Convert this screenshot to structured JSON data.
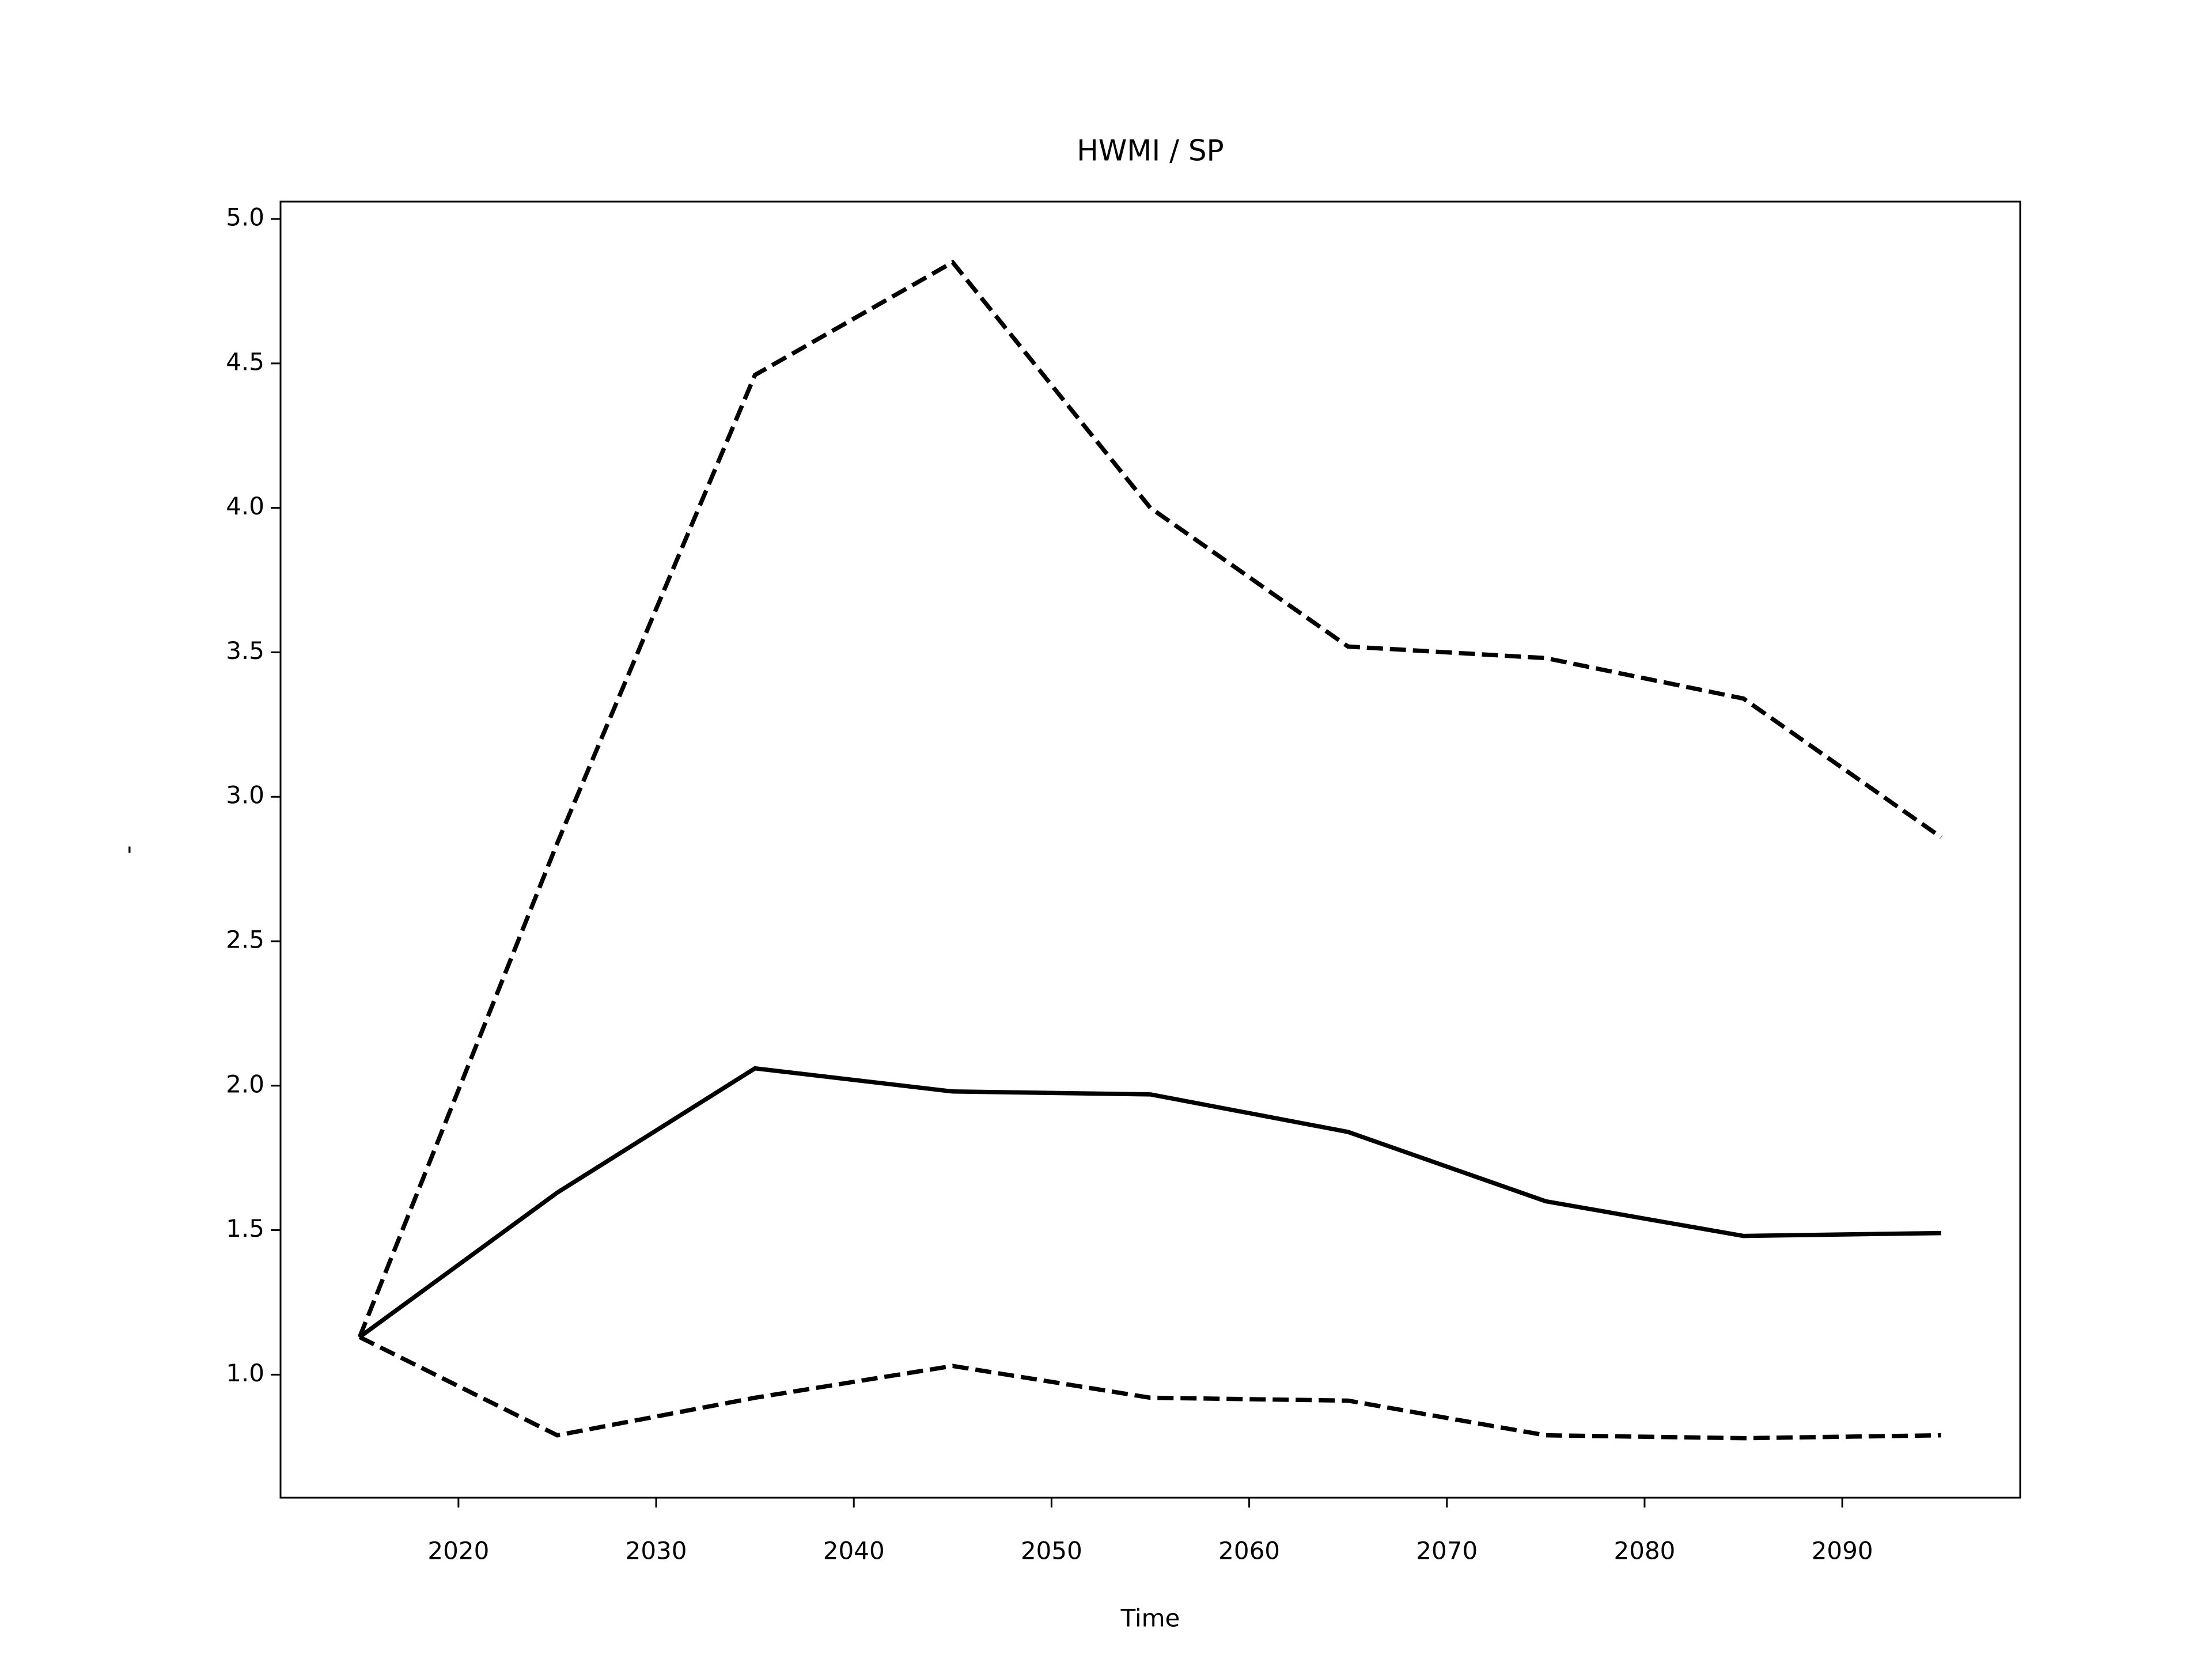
{
  "chart_data": {
    "type": "line",
    "title": "HWMI / SP",
    "xlabel": "Time",
    "ylabel": "-",
    "x": [
      2015,
      2025,
      2035,
      2045,
      2055,
      2065,
      2075,
      2085,
      2095
    ],
    "series": [
      {
        "color": "#000000",
        "linestyle": "solid",
        "values": [
          1.13,
          1.63,
          2.06,
          1.98,
          1.97,
          1.84,
          1.6,
          1.48,
          1.49
        ]
      },
      {
        "color": "#000000",
        "linestyle": "dashed",
        "values": [
          1.13,
          2.84,
          4.46,
          4.85,
          4.0,
          3.52,
          3.48,
          3.34,
          2.86
        ]
      },
      {
        "color": "#000000",
        "linestyle": "dashed",
        "values": [
          1.13,
          0.79,
          0.92,
          1.03,
          0.92,
          0.91,
          0.79,
          0.78,
          0.79
        ]
      }
    ],
    "xlim": [
      2011,
      2099
    ],
    "xticks": [
      2020,
      2030,
      2040,
      2050,
      2060,
      2070,
      2080,
      2090
    ],
    "ylim": [
      0.574,
      5.06
    ],
    "yticks": [
      {
        "value": 1.0,
        "label": "1.0"
      },
      {
        "value": 1.5,
        "label": "1.5"
      },
      {
        "value": 2.0,
        "label": "2.0"
      },
      {
        "value": 2.5,
        "label": "2.5"
      },
      {
        "value": 3.0,
        "label": "3.0"
      },
      {
        "value": 3.5,
        "label": "3.5"
      },
      {
        "value": 4.0,
        "label": "4.0"
      },
      {
        "value": 4.5,
        "label": "4.5"
      },
      {
        "value": 5.0,
        "label": "5.0"
      }
    ],
    "grid": false
  }
}
